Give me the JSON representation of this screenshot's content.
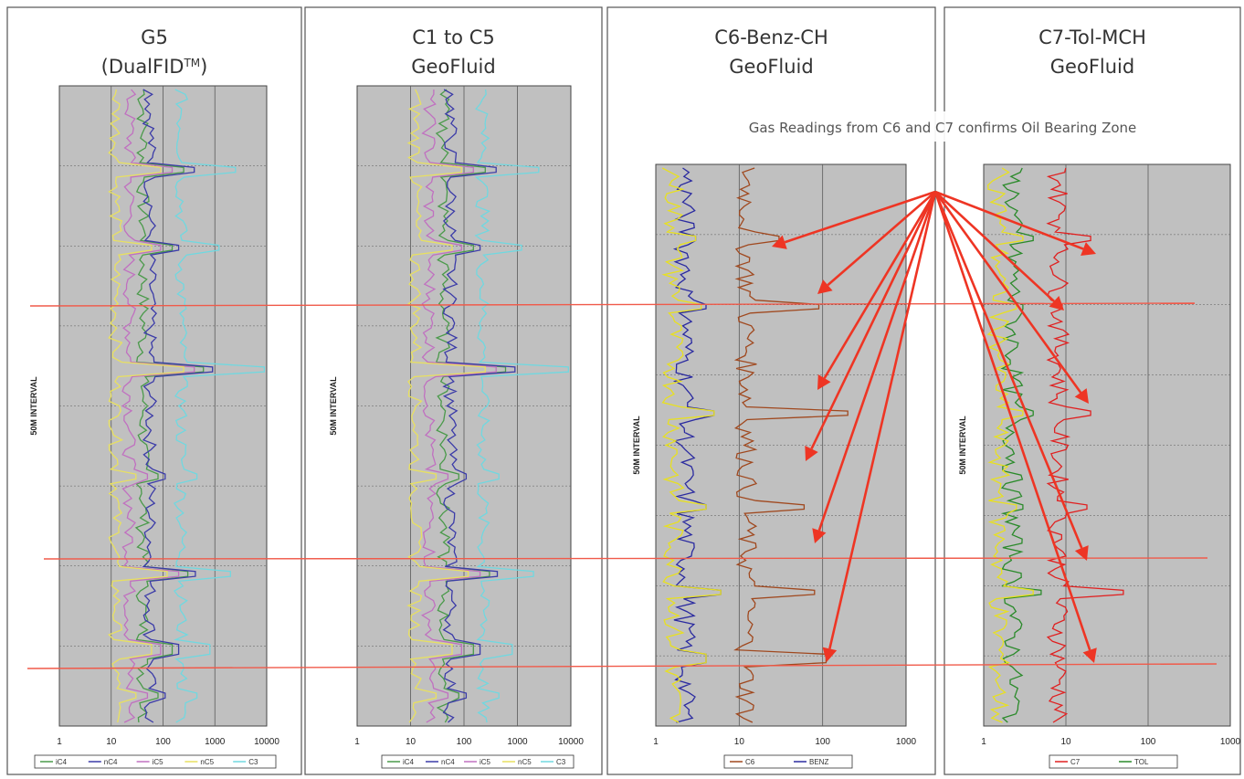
{
  "colors": {
    "plot_bg": "#c0c0c0",
    "grid": "#5a5a5a",
    "frame": "#555555",
    "correlation_line": "#f05a4a",
    "arrow": "#ee3524",
    "callout_bg": "#ffffff"
  },
  "callout": {
    "text": "Gas Readings from C6 and C7 confirms Oil Bearing Zone"
  },
  "chart_data": [
    {
      "type": "line",
      "title_line1": "G5",
      "title_line2": "(DualFID",
      "title_sup": "TM",
      "title_close": ")",
      "ylabel": "50M INTERVAL",
      "x_scale": "log",
      "xlim": [
        1,
        10000
      ],
      "x_ticks": [
        "1",
        "10",
        "100",
        "1000",
        "10000"
      ],
      "grid": true,
      "legend": [
        "iC4",
        "nC4",
        "iC5",
        "nC5",
        "C3"
      ],
      "series": [
        {
          "name": "iC4",
          "color": "#4a9a4a",
          "baseline": 40,
          "spikes": [
            250,
            150,
            600,
            80,
            300,
            150,
            80
          ]
        },
        {
          "name": "nC4",
          "color": "#3b3ba8",
          "baseline": 55,
          "spikes": [
            400,
            200,
            900,
            110,
            420,
            200,
            110
          ]
        },
        {
          "name": "iC5",
          "color": "#c070c0",
          "baseline": 22,
          "spikes": [
            150,
            90,
            400,
            50,
            200,
            90,
            50
          ]
        },
        {
          "name": "nC5",
          "color": "#e8e060",
          "baseline": 12,
          "spikes": [
            90,
            60,
            250,
            30,
            120,
            60,
            30
          ]
        },
        {
          "name": "C3",
          "color": "#70d8e0",
          "baseline": 220,
          "spikes": [
            2500,
            1200,
            9000,
            450,
            2000,
            800,
            450
          ]
        }
      ]
    },
    {
      "type": "line",
      "title_line1": "C1 to C5",
      "title_line2": "GeoFluid",
      "ylabel": "50M INTERVAL",
      "x_scale": "log",
      "xlim": [
        1,
        10000
      ],
      "x_ticks": [
        "1",
        "10",
        "100",
        "1000",
        "10000"
      ],
      "grid": true,
      "legend": [
        "iC4",
        "nC4",
        "iC5",
        "nC5",
        "C3"
      ],
      "series": [
        {
          "name": "iC4",
          "color": "#4a9a4a",
          "baseline": 40,
          "spikes": [
            250,
            150,
            600,
            80,
            300,
            150,
            80
          ]
        },
        {
          "name": "nC4",
          "color": "#3b3ba8",
          "baseline": 55,
          "spikes": [
            400,
            200,
            900,
            110,
            420,
            200,
            110
          ]
        },
        {
          "name": "iC5",
          "color": "#c070c0",
          "baseline": 22,
          "spikes": [
            150,
            90,
            400,
            50,
            200,
            90,
            50
          ]
        },
        {
          "name": "nC5",
          "color": "#e8e060",
          "baseline": 12,
          "spikes": [
            90,
            60,
            250,
            30,
            120,
            60,
            30
          ]
        },
        {
          "name": "C3",
          "color": "#70d8e0",
          "baseline": 220,
          "spikes": [
            2500,
            1200,
            9000,
            450,
            2000,
            800,
            450
          ]
        }
      ]
    },
    {
      "type": "line",
      "title_line1": "C6-Benz-CH",
      "title_line2": "GeoFluid",
      "ylabel": "50M INTERVAL",
      "x_scale": "log",
      "xlim": [
        1,
        1000
      ],
      "x_ticks": [
        "1",
        "10",
        "100",
        "1000"
      ],
      "grid": true,
      "legend": [
        "C6",
        "BENZ"
      ],
      "series": [
        {
          "name": "C6",
          "color": "#a0481e",
          "baseline": 12,
          "spikes": [
            30,
            90,
            200,
            60,
            80,
            110
          ]
        },
        {
          "name": "BENZ",
          "color": "#2a2aa0",
          "baseline": 2.2,
          "spikes": [
            3,
            4,
            5,
            4,
            6,
            4
          ]
        },
        {
          "name": "",
          "color": "#e8e020",
          "baseline": 1.6,
          "spikes": [
            3,
            3.5,
            5,
            4,
            6,
            4
          ]
        }
      ]
    },
    {
      "type": "line",
      "title_line1": "C7-Tol-MCH",
      "title_line2": "GeoFluid",
      "ylabel": "50M INTERVAL",
      "x_scale": "log",
      "xlim": [
        1,
        1000
      ],
      "x_ticks": [
        "1",
        "10",
        "100",
        "1000"
      ],
      "grid": true,
      "legend": [
        "C7",
        "TOL"
      ],
      "series": [
        {
          "name": "C7",
          "color": "#e02020",
          "baseline": 8,
          "spikes": [
            20,
            9,
            20,
            18,
            50
          ]
        },
        {
          "name": "TOL",
          "color": "#2a8a2a",
          "baseline": 2.2,
          "spikes": [
            4,
            3,
            4,
            3,
            5
          ]
        },
        {
          "name": "",
          "color": "#e8e020",
          "baseline": 1.5,
          "spikes": [
            3,
            2.5,
            3,
            2.5,
            4
          ]
        }
      ]
    }
  ]
}
